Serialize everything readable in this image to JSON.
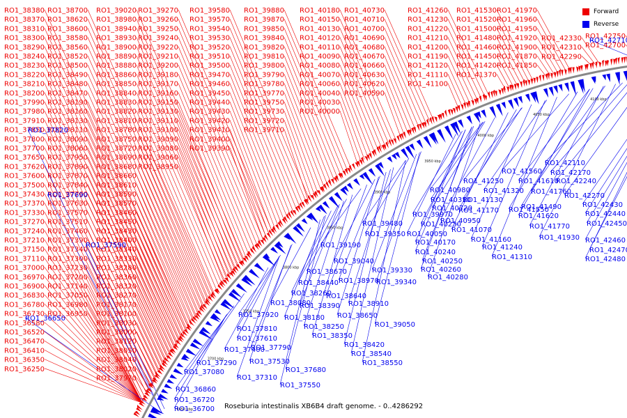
{
  "title": "Roseburia intestinalis XB6B4 draft genome. - 0..4286292",
  "legend": [
    {
      "label": "Forward",
      "color": "#ee0000"
    },
    {
      "label": "Reverse",
      "color": "#0000ee"
    }
  ],
  "colors": {
    "forward": "#ee0000",
    "reverse": "#0000ee",
    "backbone": "#888888"
  },
  "ticks": [
    "3650 kbp",
    "3700 kbp",
    "3750 kbp",
    "3800 kbp",
    "3850 kbp",
    "3900 kbp",
    "3950 kbp",
    "4000 kbp",
    "4050 kbp",
    "4100 kbp",
    "4150 kbp",
    "4200 kbp"
  ],
  "forward_labels": [
    "RO1_38380",
    "RO1_38370",
    "RO1_38310",
    "RO1_38300",
    "RO1_38290",
    "RO1_38240",
    "RO1_38230",
    "RO1_38220",
    "RO1_38210",
    "RO1_38200",
    "RO1_37990",
    "RO1_37980",
    "RO1_37910",
    "RO1_37850",
    "RO1_37800",
    "RO1_37700",
    "RO1_37650",
    "RO1_37620",
    "RO1_37600",
    "RO1_37500",
    "RO1_37430",
    "RO1_37370",
    "RO1_37330",
    "RO1_37270",
    "RO1_37240",
    "RO1_37210",
    "RO1_37150",
    "RO1_37110",
    "RO1_37000",
    "RO1_36970",
    "RO1_36900",
    "RO1_36830",
    "RO1_36780",
    "RO1_36730",
    "RO1_36580",
    "RO1_36520",
    "RO1_36470",
    "RO1_36410",
    "RO1_36350",
    "RO1_36250",
    "RO1_38700",
    "RO1_38620",
    "RO1_38600",
    "RO1_38580",
    "RO1_38560",
    "RO1_38520",
    "RO1_38500",
    "RO1_38490",
    "RO1_38480",
    "RO1_38470",
    "RO1_38190",
    "RO1_38160",
    "RO1_38130",
    "RO1_38110",
    "RO1_38090",
    "RO1_38060",
    "RO1_37950",
    "RO1_37890",
    "RO1_37870",
    "RO1_37840",
    "RO1_37760",
    "RO1_37630",
    "RO1_37570",
    "RO1_37510",
    "RO1_37460",
    "RO1_37390",
    "RO1_37340",
    "RO1_37300",
    "RO1_37230",
    "RO1_37200",
    "RO1_37140",
    "RO1_37050",
    "RO1_36980",
    "RO1_36950",
    "RO1_39020",
    "RO1_38980",
    "RO1_38940",
    "RO1_38930",
    "RO1_38900",
    "RO1_38890",
    "RO1_38880",
    "RO1_38860",
    "RO1_38850",
    "RO1_38840",
    "RO1_38830",
    "RO1_38820",
    "RO1_38810",
    "RO1_38780",
    "RO1_38750",
    "RO1_38720",
    "RO1_38690",
    "RO1_38680",
    "RO1_38660",
    "RO1_38610",
    "RO1_38590",
    "RO1_38570",
    "RO1_38460",
    "RO1_38450",
    "RO1_38430",
    "RO1_38400",
    "RO1_38340",
    "RO1_38330",
    "RO1_38280",
    "RO1_38360",
    "RO1_38320",
    "RO1_38270",
    "RO1_38170",
    "RO1_38100",
    "RO1_38030",
    "RO1_38000",
    "RO1_38120",
    "RO1_38050",
    "RO1_38040",
    "RO1_38020",
    "RO1_37970",
    "RO1_37930",
    "RO1_37830",
    "RO1_37770",
    "RO1_37750",
    "RO1_37670",
    "RO1_37560",
    "RO1_37440",
    "RO1_39270",
    "RO1_39260",
    "RO1_39250",
    "RO1_39240",
    "RO1_39220",
    "RO1_39210",
    "RO1_39200",
    "RO1_39180",
    "RO1_39170",
    "RO1_39160",
    "RO1_39150",
    "RO1_39130",
    "RO1_39110",
    "RO1_39100",
    "RO1_39090",
    "RO1_39080",
    "RO1_39060",
    "RO1_38950",
    "RO1_39580",
    "RO1_39570",
    "RO1_39540",
    "RO1_39530",
    "RO1_39520",
    "RO1_39510",
    "RO1_39500",
    "RO1_39470",
    "RO1_39460",
    "RO1_39450",
    "RO1_39440",
    "RO1_39430",
    "RO1_39420",
    "RO1_39410",
    "RO1_39400",
    "RO1_39390",
    "RO1_39880",
    "RO1_39870",
    "RO1_39850",
    "RO1_39840",
    "RO1_39820",
    "RO1_39810",
    "RO1_39800",
    "RO1_39790",
    "RO1_39780",
    "RO1_39770",
    "RO1_39750",
    "RO1_39730",
    "RO1_39720",
    "RO1_39710",
    "RO1_40180",
    "RO1_40150",
    "RO1_40130",
    "RO1_40120",
    "RO1_40110",
    "RO1_40090",
    "RO1_40080",
    "RO1_40070",
    "RO1_40060",
    "RO1_40040",
    "RO1_40030",
    "RO1_40000",
    "RO1_40730",
    "RO1_40710",
    "RO1_40700",
    "RO1_40690",
    "RO1_40680",
    "RO1_40670",
    "RO1_40660",
    "RO1_40630",
    "RO1_40620",
    "RO1_40590",
    "RO1_41260",
    "RO1_41230",
    "RO1_41220",
    "RO1_41210",
    "RO1_41200",
    "RO1_41190",
    "RO1_41120",
    "RO1_41110",
    "RO1_41100",
    "RO1_41530",
    "RO1_41520",
    "RO1_41500",
    "RO1_41480",
    "RO1_41460",
    "RO1_41450",
    "RO1_41420",
    "RO1_41370",
    "RO1_41970",
    "RO1_41960",
    "RO1_41950",
    "RO1_41920",
    "RO1_41900",
    "RO1_41870",
    "RO1_41850",
    "RO1_42330",
    "RO1_42310",
    "RO1_42290",
    "RO1_42750",
    "RO1_42700"
  ],
  "reverse_labels": [
    "RO1_37820",
    "RO1_37690",
    "RO1_37590",
    "RO1_36650",
    "RO1_36860",
    "RO1_36720",
    "RO1_36700",
    "RO1_37080",
    "RO1_37290",
    "RO1_37310",
    "RO1_37550",
    "RO1_37530",
    "RO1_37680",
    "RO1_37400",
    "RO1_37610",
    "RO1_37790",
    "RO1_37810",
    "RO1_37920",
    "RO1_38080",
    "RO1_38180",
    "RO1_38250",
    "RO1_38350",
    "RO1_38420",
    "RO1_38540",
    "RO1_38550",
    "RO1_38260",
    "RO1_38390",
    "RO1_38440",
    "RO1_38640",
    "RO1_38650",
    "RO1_38670",
    "RO1_38910",
    "RO1_38970",
    "RO1_39040",
    "RO1_39050",
    "RO1_39190",
    "RO1_39330",
    "RO1_39340",
    "RO1_39350",
    "RO1_39480",
    "RO1_39970",
    "RO1_40050",
    "RO1_40170",
    "RO1_40230",
    "RO1_40240",
    "RO1_40250",
    "RO1_40260",
    "RO1_40280",
    "RO1_40310",
    "RO1_40720",
    "RO1_40980",
    "RO1_40950",
    "RO1_41070",
    "RO1_41130",
    "RO1_41160",
    "RO1_41170",
    "RO1_41240",
    "RO1_41250",
    "RO1_41310",
    "RO1_41320",
    "RO1_41490",
    "RO1_41550",
    "RO1_41560",
    "RO1_41610",
    "RO1_41620",
    "RO1_41760",
    "RO1_41770",
    "RO1_41930",
    "RO1_42110",
    "RO1_42170",
    "RO1_42240",
    "RO1_42270",
    "RO1_42430",
    "RO1_42440",
    "RO1_42450",
    "RO1_42460",
    "RO1_42470",
    "RO1_42480",
    "RO1_42710"
  ]
}
